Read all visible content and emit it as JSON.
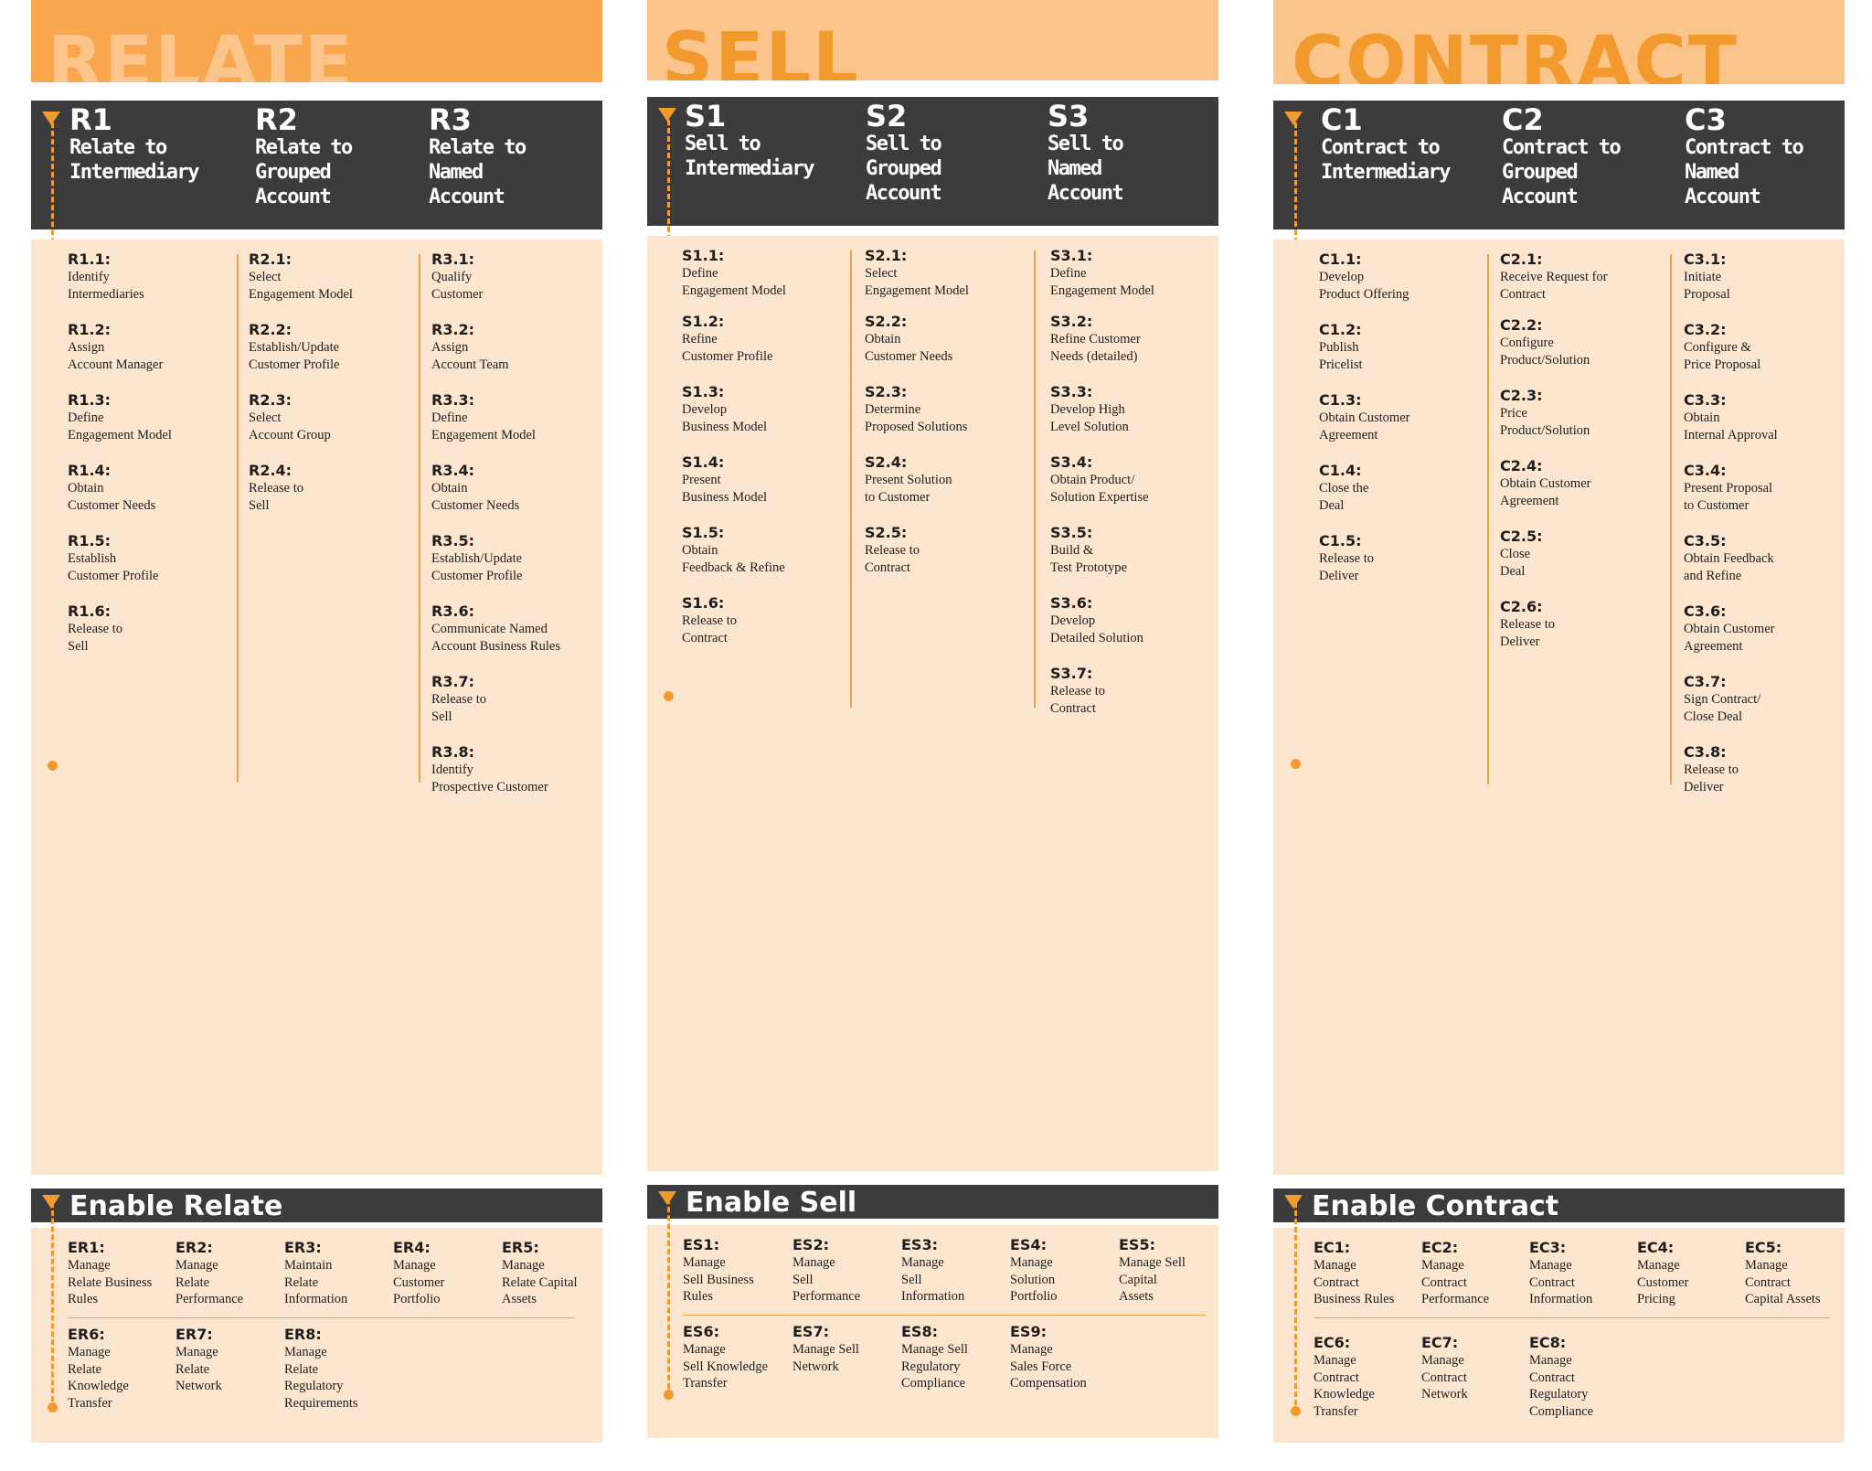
{
  "colors": {
    "banner_relate": "#f8a74f",
    "banner_sell": "#fbc48b",
    "banner_contract": "#fbc48b",
    "dark": "#3c3c3e",
    "panel": "#fde6cf",
    "accent": "#f29a2e",
    "banner_text_relate": "#fbc48b",
    "banner_text_other": "#f29a2e"
  },
  "relate": {
    "banner": "RELATE",
    "stages": [
      {
        "code": "R1",
        "title": "Relate to\nIntermediary",
        "items": [
          {
            "code": "R1.1:",
            "text": "Identify\nIntermediaries"
          },
          {
            "code": "R1.2:",
            "text": "Assign\nAccount Manager"
          },
          {
            "code": "R1.3:",
            "text": "Define\nEngagement Model"
          },
          {
            "code": "R1.4:",
            "text": "Obtain\nCustomer Needs"
          },
          {
            "code": "R1.5:",
            "text": "Establish\nCustomer Profile"
          },
          {
            "code": "R1.6:",
            "text": "Release to\nSell"
          }
        ]
      },
      {
        "code": "R2",
        "title": "Relate to\nGrouped\nAccount",
        "items": [
          {
            "code": "R2.1:",
            "text": "Select\nEngagement Model"
          },
          {
            "code": "R2.2:",
            "text": "Establish/Update\nCustomer Profile"
          },
          {
            "code": "R2.3:",
            "text": "Select\nAccount Group"
          },
          {
            "code": "R2.4:",
            "text": "Release to\nSell"
          }
        ]
      },
      {
        "code": "R3",
        "title": "Relate to\nNamed\nAccount",
        "items": [
          {
            "code": "R3.1:",
            "text": "Qualify\nCustomer"
          },
          {
            "code": "R3.2:",
            "text": "Assign\nAccount Team"
          },
          {
            "code": "R3.3:",
            "text": "Define\nEngagement Model"
          },
          {
            "code": "R3.4:",
            "text": "Obtain\nCustomer Needs"
          },
          {
            "code": "R3.5:",
            "text": "Establish/Update\nCustomer Profile"
          },
          {
            "code": "R3.6:",
            "text": "Communicate Named\nAccount Business Rules"
          },
          {
            "code": "R3.7:",
            "text": "Release to\nSell"
          },
          {
            "code": "R3.8:",
            "text": "Identify\nProspective Customer"
          }
        ]
      }
    ],
    "enable_title": "Enable Relate",
    "enable_items": [
      {
        "code": "ER1:",
        "text": "Manage\nRelate Business\nRules"
      },
      {
        "code": "ER2:",
        "text": "Manage\nRelate\nPerformance"
      },
      {
        "code": "ER3:",
        "text": "Maintain\nRelate\nInformation"
      },
      {
        "code": "ER4:",
        "text": "Manage\nCustomer\nPortfolio"
      },
      {
        "code": "ER5:",
        "text": "Manage\nRelate Capital\nAssets"
      },
      {
        "code": "ER6:",
        "text": "Manage\nRelate\nKnowledge\nTransfer"
      },
      {
        "code": "ER7:",
        "text": "Manage\nRelate\nNetwork"
      },
      {
        "code": "ER8:",
        "text": "Manage\nRelate\nRegulatory\nRequirements"
      }
    ]
  },
  "sell": {
    "banner": "SELL",
    "stages": [
      {
        "code": "S1",
        "title": "Sell to\nIntermediary",
        "items": [
          {
            "code": "S1.1:",
            "text": "Define\nEngagement Model"
          },
          {
            "code": "S1.2:",
            "text": "Refine\nCustomer Profile"
          },
          {
            "code": "S1.3:",
            "text": "Develop\nBusiness Model"
          },
          {
            "code": "S1.4:",
            "text": "Present\nBusiness Model"
          },
          {
            "code": "S1.5:",
            "text": "Obtain\nFeedback & Refine"
          },
          {
            "code": "S1.6:",
            "text": "Release to\nContract"
          }
        ]
      },
      {
        "code": "S2",
        "title": "Sell to\nGrouped\nAccount",
        "items": [
          {
            "code": "S2.1:",
            "text": "Select\nEngagement Model"
          },
          {
            "code": "S2.2:",
            "text": "Obtain\nCustomer Needs"
          },
          {
            "code": "S2.3:",
            "text": "Determine\nProposed Solutions"
          },
          {
            "code": "S2.4:",
            "text": "Present Solution\nto Customer"
          },
          {
            "code": "S2.5:",
            "text": "Release to\nContract"
          }
        ]
      },
      {
        "code": "S3",
        "title": "Sell to\nNamed\nAccount",
        "items": [
          {
            "code": "S3.1:",
            "text": "Define\nEngagement Model"
          },
          {
            "code": "S3.2:",
            "text": "Refine Customer\nNeeds (detailed)"
          },
          {
            "code": "S3.3:",
            "text": "Develop High\nLevel Solution"
          },
          {
            "code": "S3.4:",
            "text": "Obtain Product/\nSolution Expertise"
          },
          {
            "code": "S3.5:",
            "text": "Build &\nTest Prototype"
          },
          {
            "code": "S3.6:",
            "text": "Develop\nDetailed Solution"
          },
          {
            "code": "S3.7:",
            "text": "Release to\nContract"
          }
        ]
      }
    ],
    "enable_title": "Enable Sell",
    "enable_items": [
      {
        "code": "ES1:",
        "text": "Manage\nSell Business\nRules"
      },
      {
        "code": "ES2:",
        "text": "Manage\nSell\nPerformance"
      },
      {
        "code": "ES3:",
        "text": "Manage\nSell\nInformation"
      },
      {
        "code": "ES4:",
        "text": "Manage\nSolution\nPortfolio"
      },
      {
        "code": "ES5:",
        "text": "Manage Sell\nCapital\nAssets"
      },
      {
        "code": "ES6:",
        "text": "Manage\nSell Knowledge\nTransfer"
      },
      {
        "code": "ES7:",
        "text": "Manage Sell\nNetwork"
      },
      {
        "code": "ES8:",
        "text": "Manage Sell\nRegulatory\nCompliance"
      },
      {
        "code": "ES9:",
        "text": "Manage\nSales Force\nCompensation"
      }
    ]
  },
  "contract": {
    "banner": "CONTRACT",
    "stages": [
      {
        "code": "C1",
        "title": "Contract to\nIntermediary",
        "items": [
          {
            "code": "C1.1:",
            "text": "Develop\nProduct Offering"
          },
          {
            "code": "C1.2:",
            "text": "Publish\nPricelist"
          },
          {
            "code": "C1.3:",
            "text": "Obtain Customer\nAgreement"
          },
          {
            "code": "C1.4:",
            "text": "Close the\nDeal"
          },
          {
            "code": "C1.5:",
            "text": "Release to\nDeliver"
          }
        ]
      },
      {
        "code": "C2",
        "title": "Contract to\nGrouped\nAccount",
        "items": [
          {
            "code": "C2.1:",
            "text": "Receive Request for\nContract"
          },
          {
            "code": "C2.2:",
            "text": "Configure\nProduct/Solution"
          },
          {
            "code": "C2.3:",
            "text": "Price\nProduct/Solution"
          },
          {
            "code": "C2.4:",
            "text": "Obtain Customer\nAgreement"
          },
          {
            "code": "C2.5:",
            "text": "Close\nDeal"
          },
          {
            "code": "C2.6:",
            "text": "Release to\nDeliver"
          }
        ]
      },
      {
        "code": "C3",
        "title": "Contract to\nNamed\nAccount",
        "items": [
          {
            "code": "C3.1:",
            "text": "Initiate\nProposal"
          },
          {
            "code": "C3.2:",
            "text": "Configure &\nPrice Proposal"
          },
          {
            "code": "C3.3:",
            "text": "Obtain\nInternal Approval"
          },
          {
            "code": "C3.4:",
            "text": "Present Proposal\nto Customer"
          },
          {
            "code": "C3.5:",
            "text": "Obtain Feedback\nand Refine"
          },
          {
            "code": "C3.6:",
            "text": "Obtain Customer\nAgreement"
          },
          {
            "code": "C3.7:",
            "text": "Sign Contract/\nClose Deal"
          },
          {
            "code": "C3.8:",
            "text": "Release to\nDeliver"
          }
        ]
      }
    ],
    "enable_title": "Enable Contract",
    "enable_items": [
      {
        "code": "EC1:",
        "text": "Manage\nContract\nBusiness Rules"
      },
      {
        "code": "EC2:",
        "text": "Manage\nContract\nPerformance"
      },
      {
        "code": "EC3:",
        "text": "Manage\nContract\nInformation"
      },
      {
        "code": "EC4:",
        "text": "Manage\nCustomer\nPricing"
      },
      {
        "code": "EC5:",
        "text": "Manage\nContract\nCapital Assets"
      },
      {
        "code": "EC6:",
        "text": "Manage\nContract\nKnowledge\nTransfer"
      },
      {
        "code": "EC7:",
        "text": "Manage\nContract\nNetwork"
      },
      {
        "code": "EC8:",
        "text": "Manage\nContract\nRegulatory\nCompliance"
      }
    ]
  }
}
